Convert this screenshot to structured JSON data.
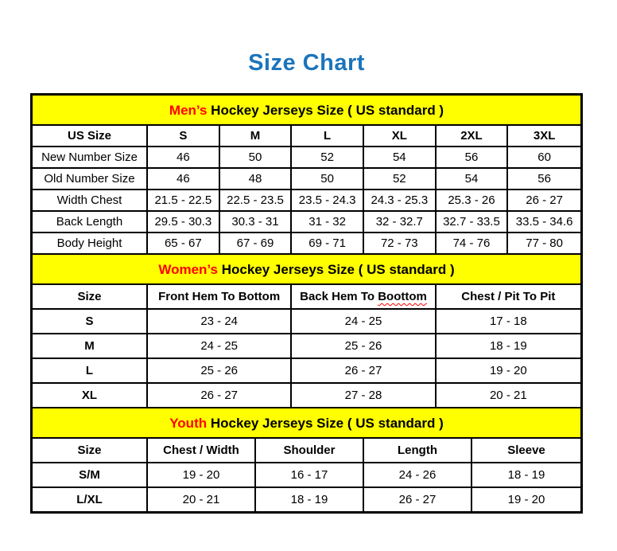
{
  "page_title": "Size Chart",
  "colors": {
    "title_blue": "#1B74BC",
    "accent_red": "#FF0000",
    "band_yellow": "#FFFF00",
    "border_black": "#000000"
  },
  "sections": [
    {
      "id": "mens",
      "title_accent": "Men’s",
      "title_rest": " Hockey Jerseys Size ( US standard )",
      "header": [
        "US Size",
        "S",
        "M",
        "L",
        "XL",
        "2XL",
        "3XL"
      ],
      "rows": [
        [
          "New Number Size",
          "46",
          "50",
          "52",
          "54",
          "56",
          "60"
        ],
        [
          "Old Number Size",
          "46",
          "48",
          "50",
          "52",
          "54",
          "56"
        ],
        [
          "Width Chest",
          "21.5 - 22.5",
          "22.5 - 23.5",
          "23.5 - 24.3",
          "24.3 - 25.3",
          "25.3 - 26",
          "26 - 27"
        ],
        [
          "Back Length",
          "29.5 - 30.3",
          "30.3 - 31",
          "31 - 32",
          "32 - 32.7",
          "32.7 - 33.5",
          "33.5 - 34.6"
        ],
        [
          "Body Height",
          "65 - 67",
          "67 - 69",
          "69 - 71",
          "72 - 73",
          "74 - 76",
          "77 - 80"
        ]
      ],
      "row_label_bold": false
    },
    {
      "id": "womens",
      "title_accent": "Women’s",
      "title_rest": " Hockey Jerseys Size ( US standard )",
      "header": [
        "Size",
        "Front Hem To Bottom",
        {
          "prefix": "Back Hem To ",
          "misspelled": "Boottom"
        },
        "Chest / Pit To Pit"
      ],
      "rows": [
        [
          "S",
          "23 - 24",
          "24 - 25",
          "17 - 18"
        ],
        [
          "M",
          "24 - 25",
          "25 - 26",
          "18 - 19"
        ],
        [
          "L",
          "25 - 26",
          "26 - 27",
          "19 - 20"
        ],
        [
          "XL",
          "26 - 27",
          "27 - 28",
          "20 - 21"
        ]
      ],
      "row_label_bold": true
    },
    {
      "id": "youth",
      "title_accent": "Youth",
      "title_rest": " Hockey Jerseys Size ( US standard )",
      "header": [
        "Size",
        "Chest / Width",
        "Shoulder",
        "Length",
        "Sleeve"
      ],
      "rows": [
        [
          "S/M",
          "19 - 20",
          "16 - 17",
          "24 - 26",
          "18 - 19"
        ],
        [
          "L/XL",
          "20 - 21",
          "18 - 19",
          "26 - 27",
          "19 - 20"
        ]
      ],
      "row_label_bold": true
    }
  ]
}
